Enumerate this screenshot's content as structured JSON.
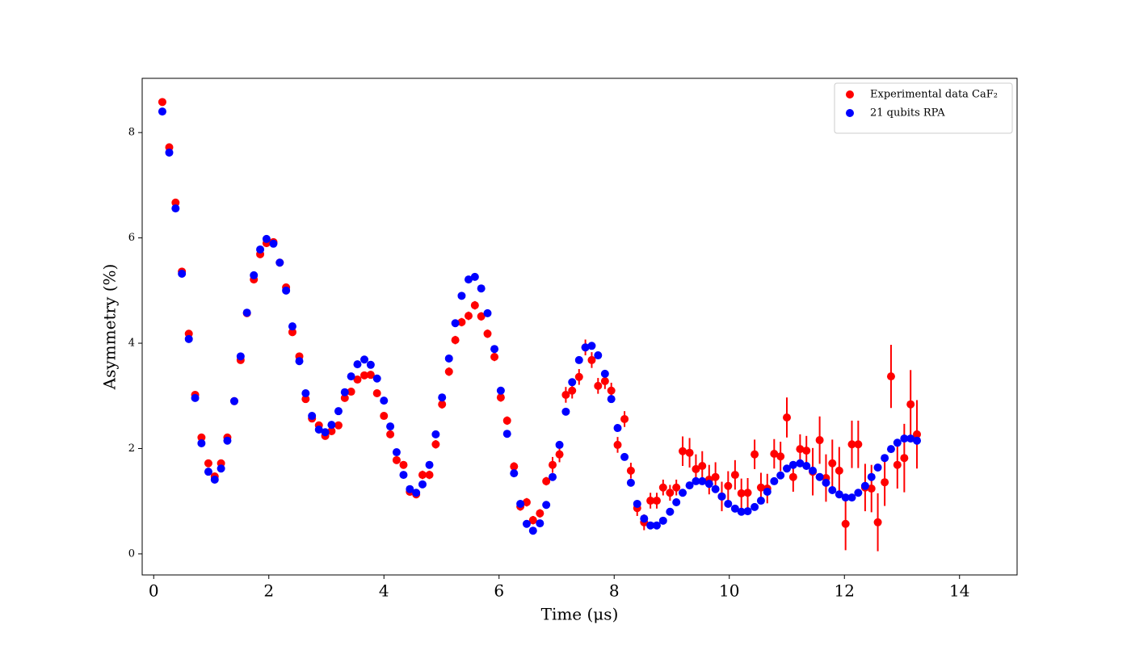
{
  "chart_data": {
    "type": "scatter",
    "x_label": "Time (μs)",
    "y_label": "Asymmetry (%)",
    "xlim": [
      -0.2,
      15
    ],
    "ylim": [
      -0.4,
      9.03
    ],
    "xticks": [
      0,
      2,
      4,
      6,
      8,
      10,
      12,
      14
    ],
    "yticks": [
      0,
      2,
      4,
      6,
      8
    ],
    "legend": "upper right",
    "x": [
      0.15,
      0.27,
      0.38,
      0.49,
      0.61,
      0.72,
      0.83,
      0.95,
      1.06,
      1.17,
      1.28,
      1.4,
      1.51,
      1.62,
      1.74,
      1.85,
      1.96,
      2.08,
      2.19,
      2.3,
      2.41,
      2.53,
      2.64,
      2.75,
      2.87,
      2.98,
      3.09,
      3.21,
      3.32,
      3.43,
      3.54,
      3.66,
      3.77,
      3.88,
      4.0,
      4.11,
      4.22,
      4.34,
      4.45,
      4.56,
      4.67,
      4.79,
      4.9,
      5.01,
      5.13,
      5.24,
      5.35,
      5.47,
      5.58,
      5.69,
      5.8,
      5.92,
      6.03,
      6.14,
      6.26,
      6.37,
      6.48,
      6.59,
      6.71,
      6.82,
      6.93,
      7.05,
      7.16,
      7.27,
      7.39,
      7.5,
      7.61,
      7.72,
      7.84,
      7.95,
      8.06,
      8.18,
      8.29,
      8.4,
      8.52,
      8.63,
      8.74,
      8.85,
      8.97,
      9.08,
      9.19,
      9.31,
      9.42,
      9.53,
      9.65,
      9.76,
      9.87,
      9.98,
      10.1,
      10.21,
      10.32,
      10.44,
      10.55,
      10.66,
      10.78,
      10.89,
      11.0,
      11.11,
      11.23,
      11.34,
      11.45,
      11.57,
      11.68,
      11.79,
      11.91,
      12.02,
      12.13,
      12.24,
      12.36,
      12.47,
      12.58,
      12.7,
      12.81,
      12.92,
      13.04,
      13.15,
      13.26
    ],
    "series": [
      {
        "name": "Experimental data CaF₂",
        "color": "#ff0000",
        "values": [
          8.58,
          7.72,
          6.67,
          5.36,
          4.18,
          3.02,
          2.21,
          1.72,
          1.47,
          1.72,
          2.21,
          2.9,
          3.68,
          4.57,
          5.21,
          5.69,
          5.9,
          5.92,
          5.53,
          5.06,
          4.21,
          3.75,
          2.94,
          2.57,
          2.44,
          2.24,
          2.33,
          2.44,
          2.96,
          3.08,
          3.31,
          3.39,
          3.4,
          3.05,
          2.62,
          2.27,
          1.78,
          1.69,
          1.18,
          1.13,
          1.5,
          1.5,
          2.08,
          2.84,
          3.46,
          4.06,
          4.4,
          4.52,
          4.72,
          4.51,
          4.18,
          3.74,
          2.97,
          2.53,
          1.66,
          0.9,
          0.98,
          0.64,
          0.77,
          1.38,
          1.69,
          1.89,
          3.02,
          3.1,
          3.36,
          3.92,
          3.68,
          3.19,
          3.28,
          3.1,
          2.07,
          2.56,
          1.58,
          0.87,
          0.6,
          1.01,
          1.01,
          1.26,
          1.16,
          1.26,
          1.95,
          1.92,
          1.61,
          1.67,
          1.41,
          1.46,
          1.09,
          1.29,
          1.5,
          1.15,
          1.16,
          1.89,
          1.26,
          1.24,
          1.9,
          1.85,
          2.59,
          1.46,
          1.99,
          1.96,
          1.56,
          2.16,
          1.44,
          1.72,
          1.58,
          0.57,
          2.08,
          2.08,
          1.26,
          1.24,
          0.6,
          1.36,
          3.37,
          1.69,
          1.82,
          2.84,
          2.27
        ],
        "errors": [
          0.04,
          0.04,
          0.04,
          0.04,
          0.04,
          0.04,
          0.04,
          0.04,
          0.04,
          0.04,
          0.04,
          0.04,
          0.04,
          0.04,
          0.04,
          0.04,
          0.04,
          0.04,
          0.04,
          0.04,
          0.04,
          0.04,
          0.04,
          0.04,
          0.04,
          0.04,
          0.04,
          0.04,
          0.04,
          0.04,
          0.04,
          0.04,
          0.04,
          0.04,
          0.04,
          0.04,
          0.04,
          0.04,
          0.04,
          0.04,
          0.08,
          0.08,
          0.08,
          0.08,
          0.08,
          0.08,
          0.08,
          0.08,
          0.08,
          0.08,
          0.08,
          0.08,
          0.08,
          0.08,
          0.08,
          0.08,
          0.08,
          0.08,
          0.08,
          0.08,
          0.15,
          0.15,
          0.15,
          0.15,
          0.15,
          0.15,
          0.15,
          0.15,
          0.15,
          0.15,
          0.15,
          0.15,
          0.15,
          0.15,
          0.15,
          0.15,
          0.15,
          0.15,
          0.15,
          0.15,
          0.28,
          0.28,
          0.28,
          0.28,
          0.28,
          0.28,
          0.28,
          0.28,
          0.28,
          0.28,
          0.28,
          0.28,
          0.28,
          0.28,
          0.28,
          0.28,
          0.38,
          0.28,
          0.28,
          0.28,
          0.45,
          0.45,
          0.45,
          0.45,
          0.45,
          0.5,
          0.45,
          0.45,
          0.45,
          0.45,
          0.55,
          0.45,
          0.6,
          0.45,
          0.65,
          0.65,
          0.65
        ]
      },
      {
        "name": "21 qubits RPA",
        "color": "#0000ff",
        "values": [
          8.4,
          7.62,
          6.56,
          5.32,
          4.08,
          2.96,
          2.1,
          1.56,
          1.41,
          1.62,
          2.15,
          2.9,
          3.75,
          4.58,
          5.29,
          5.78,
          5.98,
          5.89,
          5.53,
          5.0,
          4.32,
          3.66,
          3.05,
          2.62,
          2.36,
          2.31,
          2.45,
          2.71,
          3.07,
          3.37,
          3.6,
          3.69,
          3.59,
          3.33,
          2.91,
          2.42,
          1.93,
          1.5,
          1.23,
          1.16,
          1.32,
          1.69,
          2.27,
          2.97,
          3.71,
          4.38,
          4.9,
          5.21,
          5.26,
          5.04,
          4.57,
          3.89,
          3.1,
          2.28,
          1.53,
          0.95,
          0.57,
          0.44,
          0.58,
          0.93,
          1.46,
          2.07,
          2.7,
          3.26,
          3.68,
          3.92,
          3.95,
          3.77,
          3.42,
          2.94,
          2.39,
          1.84,
          1.35,
          0.95,
          0.67,
          0.54,
          0.54,
          0.63,
          0.8,
          0.98,
          1.16,
          1.3,
          1.38,
          1.38,
          1.33,
          1.23,
          1.09,
          0.95,
          0.86,
          0.8,
          0.81,
          0.89,
          1.01,
          1.18,
          1.38,
          1.49,
          1.62,
          1.69,
          1.72,
          1.67,
          1.58,
          1.46,
          1.35,
          1.21,
          1.13,
          1.07,
          1.07,
          1.16,
          1.29,
          1.46,
          1.64,
          1.82,
          1.99,
          2.11,
          2.19,
          2.19,
          2.15
        ]
      }
    ]
  }
}
